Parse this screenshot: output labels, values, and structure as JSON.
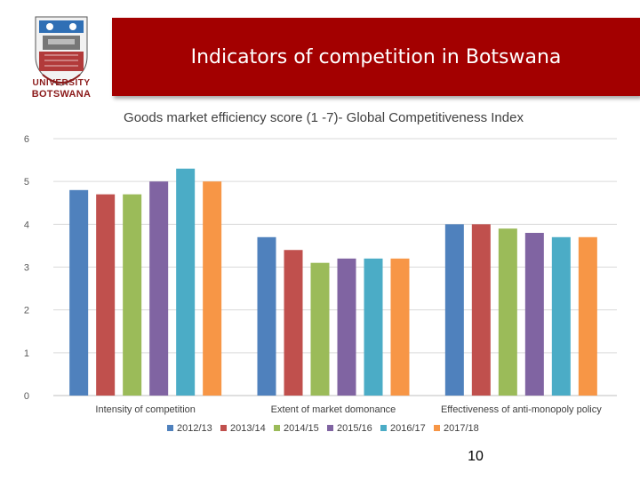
{
  "header": {
    "title": "Indicators of competition in Botswana",
    "logo_line1": "UNIVERSITY",
    "logo_line2": "BOTSWANA"
  },
  "colors": {
    "banner": "#a30000"
  },
  "page_number": "10",
  "chart_data": {
    "type": "bar",
    "title": "Goods market efficiency score (1 -7)- Global Competitiveness Index",
    "xlabel": "",
    "ylabel": "",
    "ylim": [
      0,
      6
    ],
    "yticks": [
      0,
      1,
      2,
      3,
      4,
      5,
      6
    ],
    "grid": true,
    "legend_position": "bottom",
    "categories": [
      "Intensity of competition",
      "Extent of market domonance",
      "Effectiveness of anti-monopoly policy"
    ],
    "series": [
      {
        "name": "2012/13",
        "color": "#4f81bd",
        "values": [
          4.8,
          3.7,
          4.0
        ]
      },
      {
        "name": "2013/14",
        "color": "#c0504d",
        "values": [
          4.7,
          3.4,
          4.0
        ]
      },
      {
        "name": "2014/15",
        "color": "#9bbb59",
        "values": [
          4.7,
          3.1,
          3.9
        ]
      },
      {
        "name": "2015/16",
        "color": "#8064a2",
        "values": [
          5.0,
          3.2,
          3.8
        ]
      },
      {
        "name": "2016/17",
        "color": "#4bacc6",
        "values": [
          5.3,
          3.2,
          3.7
        ]
      },
      {
        "name": "2017/18",
        "color": "#f79646",
        "values": [
          5.0,
          3.2,
          3.7
        ]
      }
    ]
  }
}
